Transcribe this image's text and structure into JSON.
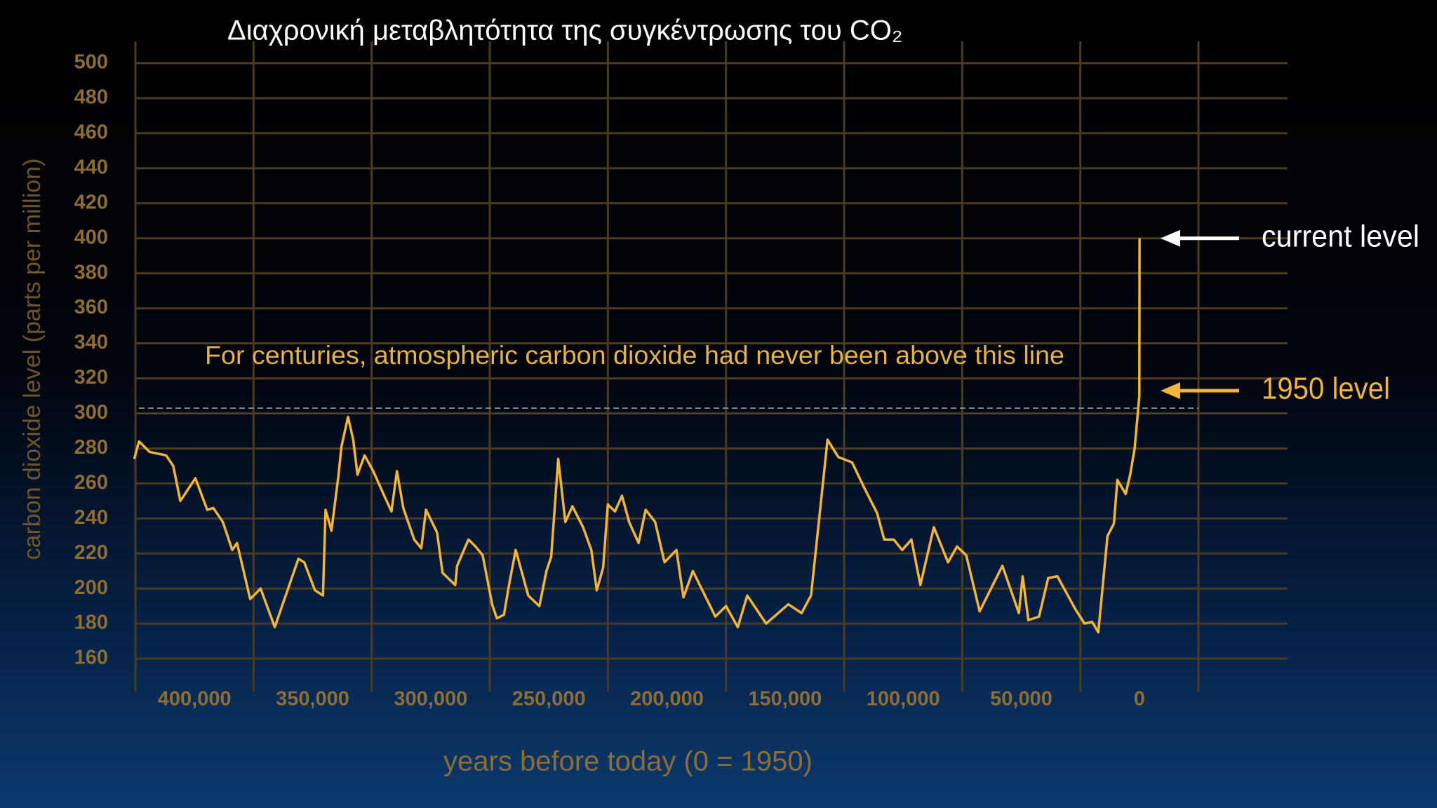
{
  "chart_data": {
    "type": "line",
    "title": "Διαχρονική μεταβλητότητα της συγκέντρωσης του CO₂",
    "x_label": "years before today (0 = 1950)",
    "y_label": "carbon dioxide level (parts per million)",
    "x": [
      425500,
      423500,
      419000,
      412000,
      409000,
      406000,
      399600,
      394600,
      392000,
      388000,
      384000,
      382000,
      376400,
      372000,
      366000,
      356000,
      353500,
      349000,
      345600,
      344500,
      342000,
      339000,
      337800,
      335000,
      332800,
      331000,
      328000,
      324300,
      320000,
      316600,
      314300,
      311600,
      307000,
      304000,
      302000,
      297300,
      295000,
      289600,
      288800,
      284000,
      281000,
      278000,
      274000,
      272000,
      269000,
      266700,
      264000,
      258700,
      254000,
      251000,
      249000,
      246000,
      243000,
      240000,
      235500,
      232000,
      229700,
      227000,
      225000,
      222000,
      219000,
      216000,
      212000,
      209000,
      205000,
      201000,
      196000,
      193000,
      189000,
      179500,
      175000,
      170000,
      166000,
      158000,
      148600,
      143000,
      139000,
      132000,
      127400,
      121600,
      117000,
      111000,
      108000,
      104000,
      100400,
      96500,
      92700,
      87000,
      81000,
      77200,
      73300,
      67600,
      58000,
      51000,
      49400,
      47000,
      42500,
      38600,
      34700,
      27000,
      23200,
      20000,
      17400,
      13500,
      10800,
      9300,
      5800,
      3900,
      2000,
      0,
      -65
    ],
    "series": [
      {
        "name": "CO2",
        "color": "#f2b53c",
        "values": [
          274,
          284,
          278,
          276,
          270,
          250,
          263,
          245,
          246,
          238,
          222,
          226,
          194,
          200,
          178,
          217,
          215,
          199,
          196,
          245,
          233,
          265,
          281,
          298,
          285,
          265,
          276,
          267,
          254,
          244,
          267,
          246,
          228,
          223,
          245,
          232,
          209,
          202,
          213,
          228,
          224,
          219,
          191,
          183,
          185,
          203,
          222,
          196,
          190,
          210,
          218,
          274,
          238,
          247,
          235,
          222,
          199,
          212,
          248,
          244,
          253,
          238,
          226,
          245,
          238,
          215,
          222,
          195,
          210,
          184,
          190,
          178,
          196,
          180,
          191,
          186,
          196,
          285,
          275,
          272,
          259,
          243,
          228,
          228,
          222,
          228,
          202,
          235,
          215,
          224,
          219,
          187,
          213,
          186,
          207,
          182,
          184,
          206,
          207,
          188,
          180,
          181,
          175,
          230,
          237,
          262,
          254,
          265,
          280,
          310,
          400
        ]
      }
    ],
    "xlim": [
      425000,
      -25000
    ],
    "xgrid": [
      425000,
      375000,
      325000,
      275000,
      225000,
      175000,
      125000,
      75000,
      25000,
      -25000
    ],
    "xticks": [
      {
        "value": 400000,
        "label": "400,000"
      },
      {
        "value": 350000,
        "label": "350,000"
      },
      {
        "value": 300000,
        "label": "300,000"
      },
      {
        "value": 250000,
        "label": "250,000"
      },
      {
        "value": 200000,
        "label": "200,000"
      },
      {
        "value": 150000,
        "label": "150,000"
      },
      {
        "value": 100000,
        "label": "100,000"
      },
      {
        "value": 50000,
        "label": "50,000"
      },
      0
    ],
    "ylim": [
      160,
      500
    ],
    "yticks": [
      160,
      180,
      200,
      220,
      240,
      260,
      280,
      300,
      320,
      340,
      360,
      380,
      400,
      420,
      440,
      460,
      480,
      500
    ],
    "grid": true,
    "reference_line": {
      "value": 303,
      "label": "For centuries, atmospheric carbon dioxide had never been above this line"
    },
    "annotations": [
      {
        "text": "current level",
        "value": 400,
        "color": "#ffffff"
      },
      {
        "text": "1950 level",
        "value": 313,
        "color": "#f2b53c"
      }
    ]
  }
}
